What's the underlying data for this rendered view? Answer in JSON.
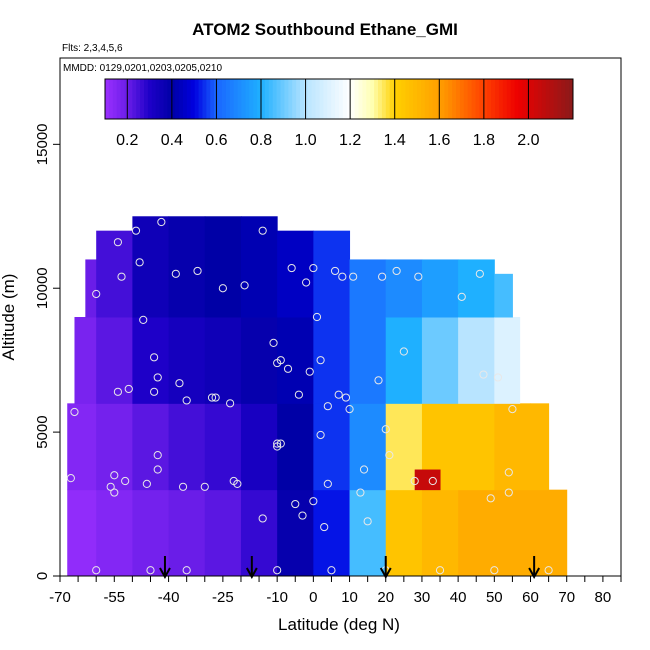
{
  "chart_data": {
    "type": "heatmap",
    "title": "ATOM2 Southbound Ethane_GMI",
    "flights_note": "Flts: 2,3,4,5,6",
    "dates_note": "MMDD: 0129,0201,0203,0205,0210",
    "xlabel": "Latitude (deg N)",
    "ylabel": "Altitude (m)",
    "xlim": [
      -70,
      85
    ],
    "ylim": [
      0,
      18000
    ],
    "x_ticks": [
      -70,
      -55,
      -40,
      -25,
      -10,
      0,
      10,
      20,
      30,
      40,
      50,
      60,
      70,
      80
    ],
    "y_ticks": [
      0,
      5000,
      10000,
      15000
    ],
    "colorbar": {
      "range": [
        0.1,
        2.2
      ],
      "ticks": [
        0.2,
        0.4,
        0.6,
        0.8,
        1.0,
        1.2,
        1.4,
        1.6,
        1.8,
        2.0
      ],
      "tick_labels": [
        "0.2",
        "0.4",
        "0.6",
        "0.8",
        "1.0",
        "1.2",
        "1.4",
        "1.6",
        "1.8",
        "2.0"
      ],
      "stops": [
        {
          "v": 0.1,
          "color": "#9b30ff"
        },
        {
          "v": 0.2,
          "color": "#6a1de8"
        },
        {
          "v": 0.3,
          "color": "#1e00c8"
        },
        {
          "v": 0.4,
          "color": "#0000a6"
        },
        {
          "v": 0.5,
          "color": "#0000e0"
        },
        {
          "v": 0.6,
          "color": "#1a66ff"
        },
        {
          "v": 0.8,
          "color": "#1fb0ff"
        },
        {
          "v": 1.0,
          "color": "#b8e4ff"
        },
        {
          "v": 1.2,
          "color": "#ffffff"
        },
        {
          "v": 1.3,
          "color": "#ffffb0"
        },
        {
          "v": 1.4,
          "color": "#ffd000"
        },
        {
          "v": 1.6,
          "color": "#ffa000"
        },
        {
          "v": 1.8,
          "color": "#ff4000"
        },
        {
          "v": 1.95,
          "color": "#ee0000"
        },
        {
          "v": 2.2,
          "color": "#8b1a1a"
        }
      ]
    },
    "cells": [
      {
        "x": [
          -68,
          -60
        ],
        "y": [
          0,
          3000
        ],
        "v": 0.12
      },
      {
        "x": [
          -68,
          -60
        ],
        "y": [
          3000,
          6000
        ],
        "v": 0.15
      },
      {
        "x": [
          -66,
          -60
        ],
        "y": [
          6000,
          9000
        ],
        "v": 0.17
      },
      {
        "x": [
          -63,
          -60
        ],
        "y": [
          9000,
          11000
        ],
        "v": 0.2
      },
      {
        "x": [
          -60,
          -50
        ],
        "y": [
          0,
          3000
        ],
        "v": 0.15
      },
      {
        "x": [
          -60,
          -50
        ],
        "y": [
          3000,
          6000
        ],
        "v": 0.18
      },
      {
        "x": [
          -60,
          -50
        ],
        "y": [
          6000,
          9000
        ],
        "v": 0.22
      },
      {
        "x": [
          -60,
          -50
        ],
        "y": [
          9000,
          12000
        ],
        "v": 0.25
      },
      {
        "x": [
          -50,
          -40
        ],
        "y": [
          0,
          3000
        ],
        "v": 0.18
      },
      {
        "x": [
          -50,
          -40
        ],
        "y": [
          3000,
          6000
        ],
        "v": 0.22
      },
      {
        "x": [
          -50,
          -40
        ],
        "y": [
          6000,
          9000
        ],
        "v": 0.3
      },
      {
        "x": [
          -50,
          -40
        ],
        "y": [
          9000,
          12500
        ],
        "v": 0.35
      },
      {
        "x": [
          -40,
          -30
        ],
        "y": [
          0,
          3000
        ],
        "v": 0.2
      },
      {
        "x": [
          -40,
          -30
        ],
        "y": [
          3000,
          6000
        ],
        "v": 0.25
      },
      {
        "x": [
          -40,
          -30
        ],
        "y": [
          6000,
          9000
        ],
        "v": 0.33
      },
      {
        "x": [
          -40,
          -30
        ],
        "y": [
          9000,
          12500
        ],
        "v": 0.38
      },
      {
        "x": [
          -30,
          -20
        ],
        "y": [
          0,
          3000
        ],
        "v": 0.22
      },
      {
        "x": [
          -30,
          -20
        ],
        "y": [
          3000,
          6000
        ],
        "v": 0.27
      },
      {
        "x": [
          -30,
          -20
        ],
        "y": [
          6000,
          9000
        ],
        "v": 0.35
      },
      {
        "x": [
          -30,
          -20
        ],
        "y": [
          9000,
          12500
        ],
        "v": 0.4
      },
      {
        "x": [
          -20,
          -10
        ],
        "y": [
          0,
          3000
        ],
        "v": 0.27
      },
      {
        "x": [
          -20,
          -10
        ],
        "y": [
          3000,
          6000
        ],
        "v": 0.32
      },
      {
        "x": [
          -20,
          -10
        ],
        "y": [
          6000,
          9000
        ],
        "v": 0.38
      },
      {
        "x": [
          -20,
          -10
        ],
        "y": [
          9000,
          12500
        ],
        "v": 0.42
      },
      {
        "x": [
          -10,
          0
        ],
        "y": [
          0,
          3000
        ],
        "v": 0.38
      },
      {
        "x": [
          -10,
          0
        ],
        "y": [
          3000,
          6000
        ],
        "v": 0.4
      },
      {
        "x": [
          -10,
          0
        ],
        "y": [
          6000,
          9000
        ],
        "v": 0.42
      },
      {
        "x": [
          -10,
          0
        ],
        "y": [
          9000,
          12000
        ],
        "v": 0.45
      },
      {
        "x": [
          0,
          10
        ],
        "y": [
          0,
          3000
        ],
        "v": 0.52
      },
      {
        "x": [
          0,
          10
        ],
        "y": [
          3000,
          6000
        ],
        "v": 0.55
      },
      {
        "x": [
          0,
          10
        ],
        "y": [
          6000,
          9000
        ],
        "v": 0.55
      },
      {
        "x": [
          0,
          10
        ],
        "y": [
          9000,
          12000
        ],
        "v": 0.55
      },
      {
        "x": [
          10,
          20
        ],
        "y": [
          0,
          3000
        ],
        "v": 0.85
      },
      {
        "x": [
          10,
          20
        ],
        "y": [
          3000,
          6000
        ],
        "v": 0.7
      },
      {
        "x": [
          10,
          20
        ],
        "y": [
          6000,
          9000
        ],
        "v": 0.65
      },
      {
        "x": [
          10,
          20
        ],
        "y": [
          9000,
          11000
        ],
        "v": 0.65
      },
      {
        "x": [
          20,
          30
        ],
        "y": [
          0,
          3000
        ],
        "v": 1.45
      },
      {
        "x": [
          20,
          30
        ],
        "y": [
          3000,
          6000
        ],
        "v": 1.35
      },
      {
        "x": [
          20,
          30
        ],
        "y": [
          6000,
          9000
        ],
        "v": 0.8
      },
      {
        "x": [
          20,
          30
        ],
        "y": [
          9000,
          11000
        ],
        "v": 0.7
      },
      {
        "x": [
          30,
          40
        ],
        "y": [
          0,
          3000
        ],
        "v": 1.5
      },
      {
        "x": [
          30,
          40
        ],
        "y": [
          3000,
          6000
        ],
        "v": 1.45
      },
      {
        "x": [
          30,
          40
        ],
        "y": [
          6000,
          9000
        ],
        "v": 0.9
      },
      {
        "x": [
          30,
          40
        ],
        "y": [
          9000,
          11000
        ],
        "v": 0.75
      },
      {
        "x": [
          40,
          50
        ],
        "y": [
          0,
          3000
        ],
        "v": 1.55
      },
      {
        "x": [
          40,
          50
        ],
        "y": [
          3000,
          6000
        ],
        "v": 1.45
      },
      {
        "x": [
          40,
          50
        ],
        "y": [
          6000,
          9000
        ],
        "v": 1.0
      },
      {
        "x": [
          40,
          50
        ],
        "y": [
          9000,
          11000
        ],
        "v": 0.8
      },
      {
        "x": [
          50,
          60
        ],
        "y": [
          0,
          3000
        ],
        "v": 1.55
      },
      {
        "x": [
          50,
          60
        ],
        "y": [
          3000,
          6000
        ],
        "v": 1.5
      },
      {
        "x": [
          50,
          57
        ],
        "y": [
          6000,
          9000
        ],
        "v": 1.1
      },
      {
        "x": [
          50,
          55
        ],
        "y": [
          9000,
          10500
        ],
        "v": 0.85
      },
      {
        "x": [
          60,
          70
        ],
        "y": [
          0,
          3000
        ],
        "v": 1.55
      },
      {
        "x": [
          60,
          65
        ],
        "y": [
          3000,
          6000
        ],
        "v": 1.5
      },
      {
        "x": [
          28,
          35
        ],
        "y": [
          3000,
          3700
        ],
        "v": 2.05
      }
    ],
    "points": [
      {
        "x": -67,
        "y": 3400
      },
      {
        "x": -66,
        "y": 5700
      },
      {
        "x": -60,
        "y": 9800
      },
      {
        "x": -56,
        "y": 3100
      },
      {
        "x": -55,
        "y": 3500
      },
      {
        "x": -55,
        "y": 2900
      },
      {
        "x": -54,
        "y": 6400
      },
      {
        "x": -54,
        "y": 11600
      },
      {
        "x": -53,
        "y": 10400
      },
      {
        "x": -52,
        "y": 3300
      },
      {
        "x": -51,
        "y": 6500
      },
      {
        "x": -49,
        "y": 12000
      },
      {
        "x": -48,
        "y": 10900
      },
      {
        "x": -47,
        "y": 8900
      },
      {
        "x": -46,
        "y": 3200
      },
      {
        "x": -44,
        "y": 7600
      },
      {
        "x": -44,
        "y": 6400
      },
      {
        "x": -43,
        "y": 6900
      },
      {
        "x": -43,
        "y": 4200
      },
      {
        "x": -43,
        "y": 3700
      },
      {
        "x": -42,
        "y": 12300
      },
      {
        "x": -38,
        "y": 10500
      },
      {
        "x": -37,
        "y": 6700
      },
      {
        "x": -36,
        "y": 3100
      },
      {
        "x": -35,
        "y": 6100
      },
      {
        "x": -32,
        "y": 10600
      },
      {
        "x": -30,
        "y": 3100
      },
      {
        "x": -28,
        "y": 6200
      },
      {
        "x": -27,
        "y": 6200
      },
      {
        "x": -25,
        "y": 10000
      },
      {
        "x": -23,
        "y": 6000
      },
      {
        "x": -22,
        "y": 3300
      },
      {
        "x": -21,
        "y": 3200
      },
      {
        "x": -19,
        "y": 10100
      },
      {
        "x": -14,
        "y": 12000
      },
      {
        "x": -14,
        "y": 2000
      },
      {
        "x": -11,
        "y": 8100
      },
      {
        "x": -10,
        "y": 4600
      },
      {
        "x": -10,
        "y": 4500
      },
      {
        "x": -10,
        "y": 7400
      },
      {
        "x": -9,
        "y": 7500
      },
      {
        "x": -9,
        "y": 4600
      },
      {
        "x": -7,
        "y": 7200
      },
      {
        "x": -6,
        "y": 10700
      },
      {
        "x": -5,
        "y": 2500
      },
      {
        "x": -4,
        "y": 6300
      },
      {
        "x": -3,
        "y": 2100
      },
      {
        "x": -2,
        "y": 10200
      },
      {
        "x": -1,
        "y": 7100
      },
      {
        "x": 0,
        "y": 2600
      },
      {
        "x": 0,
        "y": 10700
      },
      {
        "x": 1,
        "y": 9000
      },
      {
        "x": 2,
        "y": 7500
      },
      {
        "x": 2,
        "y": 4900
      },
      {
        "x": 3,
        "y": 1700
      },
      {
        "x": 4,
        "y": 3200
      },
      {
        "x": 4,
        "y": 5900
      },
      {
        "x": 6,
        "y": 10600
      },
      {
        "x": 7,
        "y": 6300
      },
      {
        "x": 8,
        "y": 10400
      },
      {
        "x": 9,
        "y": 6200
      },
      {
        "x": 10,
        "y": 5800
      },
      {
        "x": 11,
        "y": 10400
      },
      {
        "x": 13,
        "y": 2900
      },
      {
        "x": 14,
        "y": 3700
      },
      {
        "x": 15,
        "y": 1900
      },
      {
        "x": 18,
        "y": 6800
      },
      {
        "x": 19,
        "y": 10400
      },
      {
        "x": 20,
        "y": 5100
      },
      {
        "x": 21,
        "y": 4200
      },
      {
        "x": 23,
        "y": 10600
      },
      {
        "x": 25,
        "y": 7800
      },
      {
        "x": 28,
        "y": 3300
      },
      {
        "x": 29,
        "y": 10400
      },
      {
        "x": 33,
        "y": 3300
      },
      {
        "x": 41,
        "y": 9700
      },
      {
        "x": 46,
        "y": 10500
      },
      {
        "x": 47,
        "y": 7000
      },
      {
        "x": 49,
        "y": 2700
      },
      {
        "x": 51,
        "y": 6900
      },
      {
        "x": 54,
        "y": 3600
      },
      {
        "x": 54,
        "y": 2900
      },
      {
        "x": 55,
        "y": 5800
      },
      {
        "x": -60,
        "y": 200
      },
      {
        "x": -45,
        "y": 200
      },
      {
        "x": -35,
        "y": 200
      },
      {
        "x": -10,
        "y": 200
      },
      {
        "x": 5,
        "y": 200
      },
      {
        "x": 20,
        "y": 200
      },
      {
        "x": 35,
        "y": 200
      },
      {
        "x": 50,
        "y": 200
      },
      {
        "x": 65,
        "y": 200
      }
    ],
    "arrows": [
      -41,
      -17,
      20,
      61
    ]
  }
}
